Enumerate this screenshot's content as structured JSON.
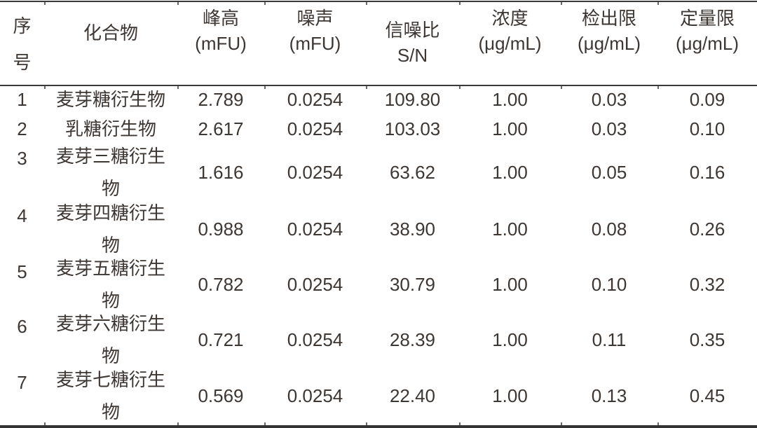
{
  "style": {
    "background": "#ffffff",
    "text_color": "#3d3734",
    "rule_color": "#3a3a3a"
  },
  "table": {
    "headers": [
      {
        "id": "index",
        "lines": [
          "序",
          "号"
        ]
      },
      {
        "id": "compound",
        "lines": [
          "化合物"
        ]
      },
      {
        "id": "peak_height",
        "lines": [
          "峰高",
          "(mFU)"
        ]
      },
      {
        "id": "noise",
        "lines": [
          "噪声",
          "(mFU)"
        ]
      },
      {
        "id": "snr",
        "lines": [
          "信噪比",
          "S/N"
        ]
      },
      {
        "id": "concentration",
        "lines": [
          "浓度",
          "(μg/mL)"
        ]
      },
      {
        "id": "lod",
        "lines": [
          "检出限",
          "(μg/mL)"
        ]
      },
      {
        "id": "loq",
        "lines": [
          "定量限",
          "(μg/mL)"
        ]
      }
    ],
    "rows": [
      {
        "index": "1",
        "compound": "麦芽糖衍生物",
        "peak_height": "2.789",
        "noise": "0.0254",
        "snr": "109.80",
        "concentration": "1.00",
        "lod": "0.03",
        "loq": "0.09"
      },
      {
        "index": "2",
        "compound": "乳糖衍生物",
        "peak_height": "2.617",
        "noise": "0.0254",
        "snr": "103.03",
        "concentration": "1.00",
        "lod": "0.03",
        "loq": "0.10"
      },
      {
        "index": "3",
        "compound": "麦芽三糖衍生物",
        "peak_height": "1.616",
        "noise": "0.0254",
        "snr": "63.62",
        "concentration": "1.00",
        "lod": "0.05",
        "loq": "0.16"
      },
      {
        "index": "4",
        "compound": "麦芽四糖衍生物",
        "peak_height": "0.988",
        "noise": "0.0254",
        "snr": "38.90",
        "concentration": "1.00",
        "lod": "0.08",
        "loq": "0.26"
      },
      {
        "index": "5",
        "compound": "麦芽五糖衍生物",
        "peak_height": "0.782",
        "noise": "0.0254",
        "snr": "30.79",
        "concentration": "1.00",
        "lod": "0.10",
        "loq": "0.32"
      },
      {
        "index": "6",
        "compound": "麦芽六糖衍生物",
        "peak_height": "0.721",
        "noise": "0.0254",
        "snr": "28.39",
        "concentration": "1.00",
        "lod": "0.11",
        "loq": "0.35"
      },
      {
        "index": "7",
        "compound": "麦芽七糖衍生物",
        "peak_height": "0.569",
        "noise": "0.0254",
        "snr": "22.40",
        "concentration": "1.00",
        "lod": "0.13",
        "loq": "0.45"
      }
    ]
  }
}
